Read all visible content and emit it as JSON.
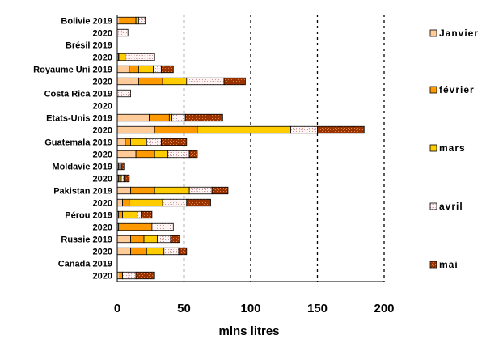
{
  "chart_data": {
    "type": "bar",
    "orientation": "horizontal",
    "stacked": true,
    "xlabel": "mlns litres",
    "xlim": [
      0,
      200
    ],
    "xticks": [
      "0",
      "50",
      "100",
      "150",
      "200"
    ],
    "grid": "vertical dotted",
    "legend_position": "right",
    "categories": [
      "Bolivie 2019",
      "2020",
      "Brésil 2019",
      "2020",
      "Royaume Uni 2019",
      "2020",
      "Costa Rica 2019",
      "2020",
      "Etats-Unis 2019",
      "2020",
      "Guatemala 2019",
      "2020",
      "Moldavie 2019",
      "2020",
      "Pakistan 2019",
      "2020",
      "Pérou 2019",
      "2020",
      "Russie 2019",
      "2020",
      "Canada 2019",
      "2020"
    ],
    "series": [
      {
        "name": "Janvier",
        "color": "#FFCC99",
        "values": [
          2,
          0,
          0,
          1,
          9,
          16,
          0,
          0,
          24,
          28,
          6,
          14,
          1,
          1,
          10,
          4,
          1,
          1,
          10,
          10,
          0,
          2
        ]
      },
      {
        "name": "février",
        "color": "#FF9900",
        "values": [
          12,
          0,
          0,
          1,
          7,
          18,
          0,
          0,
          15,
          32,
          4,
          14,
          1,
          1,
          18,
          5,
          3,
          25,
          10,
          12,
          0,
          2
        ]
      },
      {
        "name": "mars",
        "color": "#FFCC00",
        "values": [
          2,
          0,
          0,
          4,
          11,
          18,
          0,
          0,
          2,
          70,
          12,
          10,
          0,
          1,
          26,
          25,
          11,
          0,
          10,
          13,
          0,
          0
        ]
      },
      {
        "name": "avril",
        "color": "#FFE0E0",
        "values": [
          5,
          8,
          0,
          22,
          6,
          28,
          10,
          0,
          10,
          20,
          11,
          16,
          1,
          2,
          17,
          18,
          3,
          16,
          10,
          11,
          0,
          10
        ]
      },
      {
        "name": "mai",
        "color": "#993300",
        "values": [
          0,
          0,
          0,
          0,
          9,
          16,
          0,
          0,
          28,
          35,
          19,
          6,
          2,
          4,
          12,
          18,
          8,
          0,
          7,
          6,
          0,
          14
        ]
      }
    ]
  }
}
